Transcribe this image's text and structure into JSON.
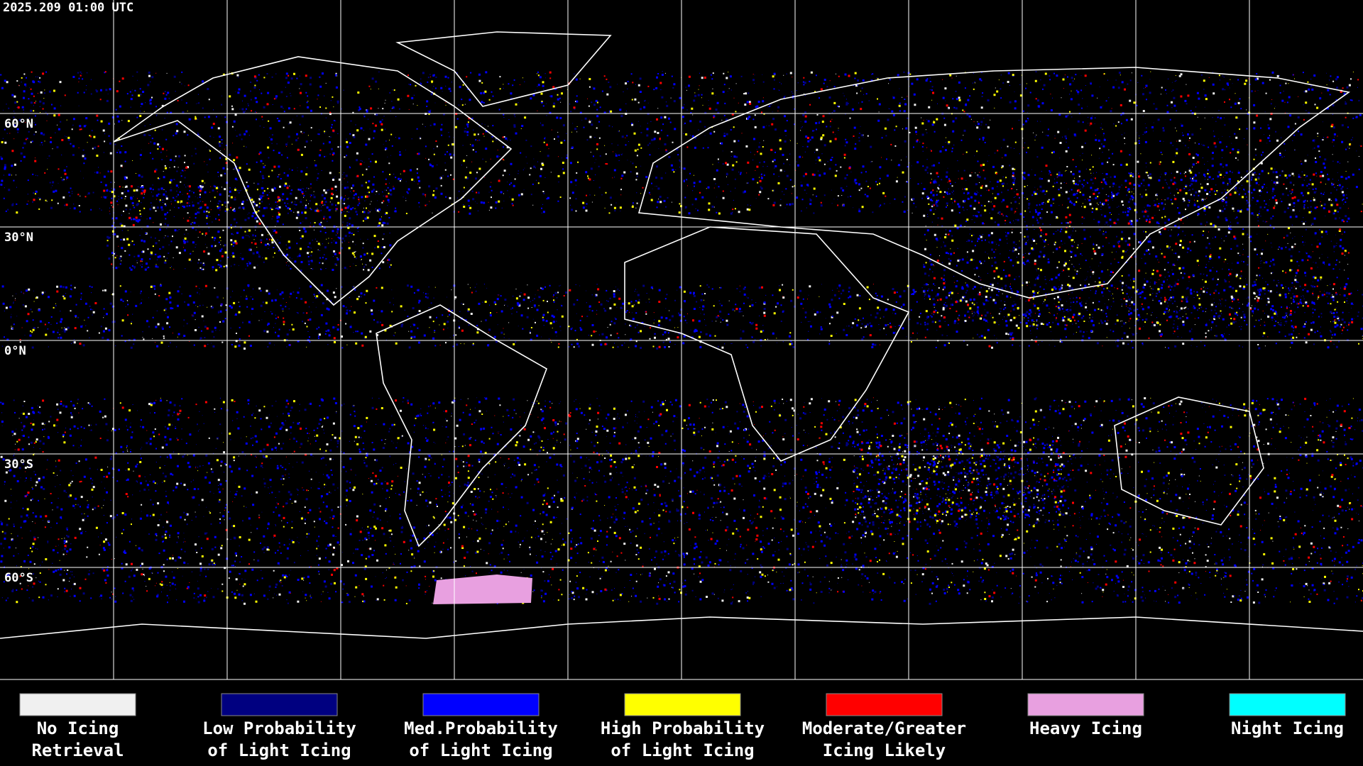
{
  "timestamp": "2025.209 01:00 UTC",
  "latitude_labels": [
    "60°N",
    "30°N",
    "0°N",
    "30°S",
    "60°S"
  ],
  "legend": [
    {
      "label": [
        "No Icing",
        "Retrieval"
      ],
      "color": "#f0f0f0"
    },
    {
      "label": [
        "Low Probability",
        "of Light Icing"
      ],
      "color": "#000080"
    },
    {
      "label": [
        "Med.Probability",
        "of Light Icing"
      ],
      "color": "#0000ff"
    },
    {
      "label": [
        "High Probability",
        "of Light Icing"
      ],
      "color": "#ffff00"
    },
    {
      "label": [
        "Moderate/Greater",
        "Icing Likely"
      ],
      "color": "#ff0000"
    },
    {
      "label": [
        "Heavy Icing"
      ],
      "color": "#e8a0e0"
    },
    {
      "label": [
        "Night Icing"
      ],
      "color": "#00ffff"
    }
  ]
}
